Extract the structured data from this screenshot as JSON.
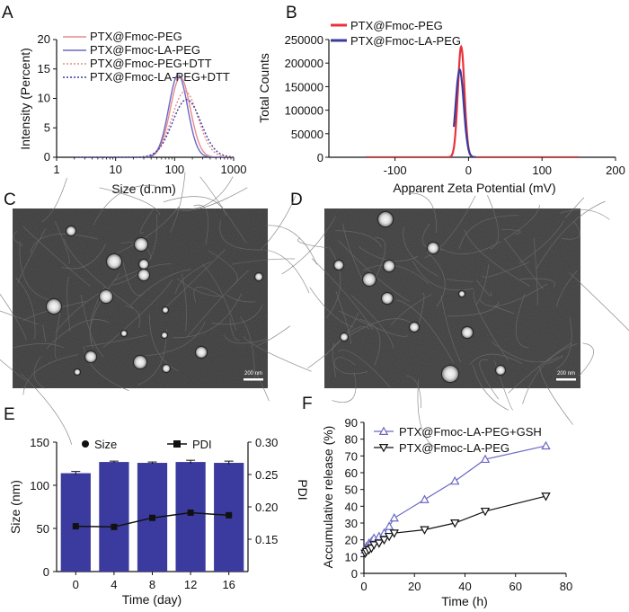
{
  "panels": {
    "a": "A",
    "b": "B",
    "c": "C",
    "d": "D",
    "e": "E",
    "f": "F"
  },
  "scale_bar": {
    "c": "200 nm",
    "d": "200 nm"
  },
  "colors": {
    "red": "#e8333a",
    "blue": "#3d3a9c",
    "pink": "#e58a8e",
    "lightblue": "#6a68c2",
    "bar": "#3b3a9e"
  },
  "chart_data": [
    {
      "id": "A",
      "type": "line",
      "xscale": "log",
      "xlabel": "Size (d.nm)",
      "ylabel": "Intensity (Percent)",
      "xlim": [
        1,
        1000
      ],
      "ylim": [
        0,
        20
      ],
      "xticks": [
        "1",
        "10",
        "100",
        "1000"
      ],
      "yticks": [
        "0",
        "5",
        "10",
        "15",
        "20"
      ],
      "series": [
        {
          "name": "PTX@Fmoc-PEG",
          "style": "solid",
          "center": 125,
          "peak": 13.6,
          "width": 0.17,
          "color": "#e58a8e"
        },
        {
          "name": "PTX@Fmoc-LA-PEG",
          "style": "solid",
          "center": 115,
          "peak": 14.0,
          "width": 0.16,
          "color": "#6a68c2"
        },
        {
          "name": "PTX@Fmoc-PEG+DTT",
          "style": "dotted",
          "center": 150,
          "peak": 11.2,
          "width": 0.22,
          "color": "#e58a8e"
        },
        {
          "name": "PTX@Fmoc-LA-PEG+DTT",
          "style": "dotted",
          "center": 160,
          "peak": 9.8,
          "width": 0.24,
          "color": "#3d3a9c"
        }
      ]
    },
    {
      "id": "B",
      "type": "line",
      "xlabel": "Apparent Zeta Potential (mV)",
      "ylabel": "Total Counts",
      "xlim": [
        -190,
        200
      ],
      "ylim": [
        0,
        250000
      ],
      "xticks": [
        "-100",
        "0",
        "100",
        "200"
      ],
      "yticks": [
        "0",
        "50000",
        "100000",
        "150000",
        "200000",
        "250000"
      ],
      "series": [
        {
          "name": "PTX@Fmoc-PEG",
          "center": -10,
          "peak": 235000,
          "width": 4.5,
          "color": "#e8333a",
          "range": [
            -140,
            150
          ]
        },
        {
          "name": "PTX@Fmoc-LA-PEG",
          "center": -12,
          "peak": 186000,
          "width": 5.5,
          "color": "#3d3a9c",
          "range": [
            -20,
            10
          ]
        }
      ]
    },
    {
      "id": "E",
      "type": "bar+line",
      "xlabel": "Time (day)",
      "ylabel": "Size (nm)",
      "y2label": "PDI",
      "categories": [
        "0",
        "4",
        "8",
        "12",
        "16"
      ],
      "series": [
        {
          "name": "Size",
          "values": [
            114,
            127,
            126,
            127,
            126
          ],
          "errors": [
            2,
            1,
            1,
            2,
            2
          ]
        },
        {
          "name": "PDI",
          "values": [
            0.17,
            0.169,
            0.183,
            0.191,
            0.187
          ]
        }
      ],
      "ylim": [
        0,
        150
      ],
      "y2lim": [
        0.1,
        0.3
      ],
      "yticks": [
        "0",
        "50",
        "100",
        "150"
      ],
      "y2ticks": [
        "0.15",
        "0.20",
        "0.25",
        "0.30"
      ]
    },
    {
      "id": "F",
      "type": "line",
      "xlabel": "Time (h)",
      "ylabel": "Accumulative release (%)",
      "xlim": [
        0,
        80
      ],
      "ylim": [
        0,
        90
      ],
      "xticks": [
        "0",
        "20",
        "40",
        "60",
        "80"
      ],
      "yticks": [
        "0",
        "10",
        "20",
        "30",
        "40",
        "50",
        "60",
        "70",
        "80",
        "90"
      ],
      "x": [
        0.5,
        1,
        2,
        3,
        4,
        6,
        8,
        10,
        12,
        24,
        36,
        48,
        72
      ],
      "series": [
        {
          "name": "PTX@Fmoc-LA-PEG+GSH",
          "marker": "triangle-up",
          "values": [
            14,
            16,
            18,
            19,
            21,
            22,
            24,
            28,
            33,
            44,
            55,
            68,
            76
          ]
        },
        {
          "name": "PTX@Fmoc-LA-PEG",
          "marker": "triangle-down",
          "values": [
            12,
            13,
            14,
            15,
            17,
            18,
            20,
            22,
            24,
            26,
            30,
            37,
            46
          ]
        }
      ]
    }
  ]
}
